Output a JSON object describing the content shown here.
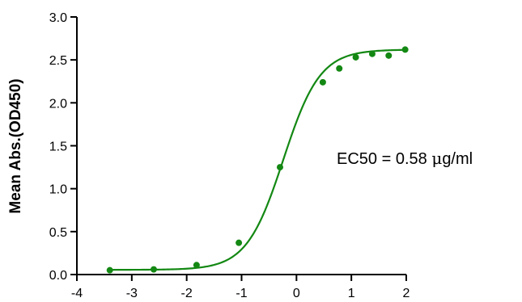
{
  "chart_data": {
    "type": "scatter",
    "title": "",
    "xlabel": "",
    "ylabel": "Mean Abs.(OD450)",
    "xlim": [
      -4,
      2
    ],
    "ylim": [
      0,
      3.0
    ],
    "xticks": [
      -4,
      -3,
      -2,
      -1,
      0,
      1,
      2
    ],
    "yticks": [
      0.0,
      0.5,
      1.0,
      1.5,
      2.0,
      2.5,
      3.0
    ],
    "xtick_labels": [
      "-4",
      "-3",
      "-2",
      "-1",
      "0",
      "1",
      "2"
    ],
    "ytick_labels": [
      "0.0",
      "0.5",
      "1.0",
      "1.5",
      "2.0",
      "2.5",
      "3.0"
    ],
    "grid": false,
    "color": "#138813",
    "points": [
      {
        "x": -3.4,
        "y": 0.05
      },
      {
        "x": -2.6,
        "y": 0.06
      },
      {
        "x": -1.82,
        "y": 0.11
      },
      {
        "x": -1.05,
        "y": 0.37
      },
      {
        "x": -0.3,
        "y": 1.25
      },
      {
        "x": 0.48,
        "y": 2.24
      },
      {
        "x": 0.78,
        "y": 2.4
      },
      {
        "x": 1.08,
        "y": 2.53
      },
      {
        "x": 1.38,
        "y": 2.57
      },
      {
        "x": 1.68,
        "y": 2.55
      },
      {
        "x": 1.98,
        "y": 2.62
      }
    ],
    "fit": {
      "model": "4PL",
      "bottom": 0.055,
      "top": 2.62,
      "logEC50": -0.24,
      "hill": 1.3
    },
    "annotations": [
      {
        "text_before": "EC50 = 0.58 ",
        "mu": "μ",
        "text_after": "g/ml"
      }
    ]
  }
}
